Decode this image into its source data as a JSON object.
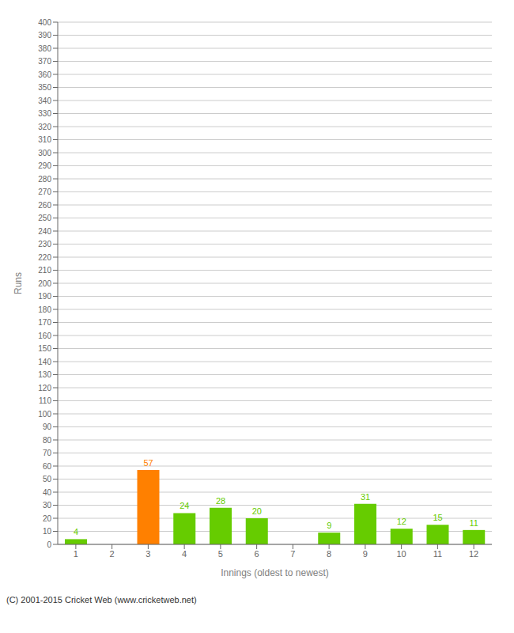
{
  "chart_data": {
    "type": "bar",
    "xlabel": "Innings (oldest to newest)",
    "ylabel": "Runs",
    "categories": [
      1,
      2,
      3,
      4,
      5,
      6,
      7,
      8,
      9,
      10,
      11,
      12
    ],
    "values": [
      4,
      0,
      57,
      24,
      28,
      20,
      0,
      9,
      31,
      12,
      15,
      11
    ],
    "colors": [
      "#66cc00",
      "#66cc00",
      "#ff8000",
      "#66cc00",
      "#66cc00",
      "#66cc00",
      "#66cc00",
      "#66cc00",
      "#66cc00",
      "#66cc00",
      "#66cc00",
      "#66cc00"
    ],
    "ylim": [
      0,
      400
    ],
    "yticks": [
      0,
      10,
      20,
      30,
      40,
      50,
      60,
      70,
      80,
      90,
      100,
      110,
      120,
      130,
      140,
      150,
      160,
      170,
      180,
      190,
      200,
      210,
      220,
      230,
      240,
      250,
      260,
      270,
      280,
      290,
      300,
      310,
      320,
      330,
      340,
      350,
      360,
      370,
      380,
      390,
      400
    ],
    "grid": true,
    "data_labels": true,
    "annotations": [
      "(C) 2001-2015 Cricket Web (www.cricketweb.net)"
    ]
  }
}
